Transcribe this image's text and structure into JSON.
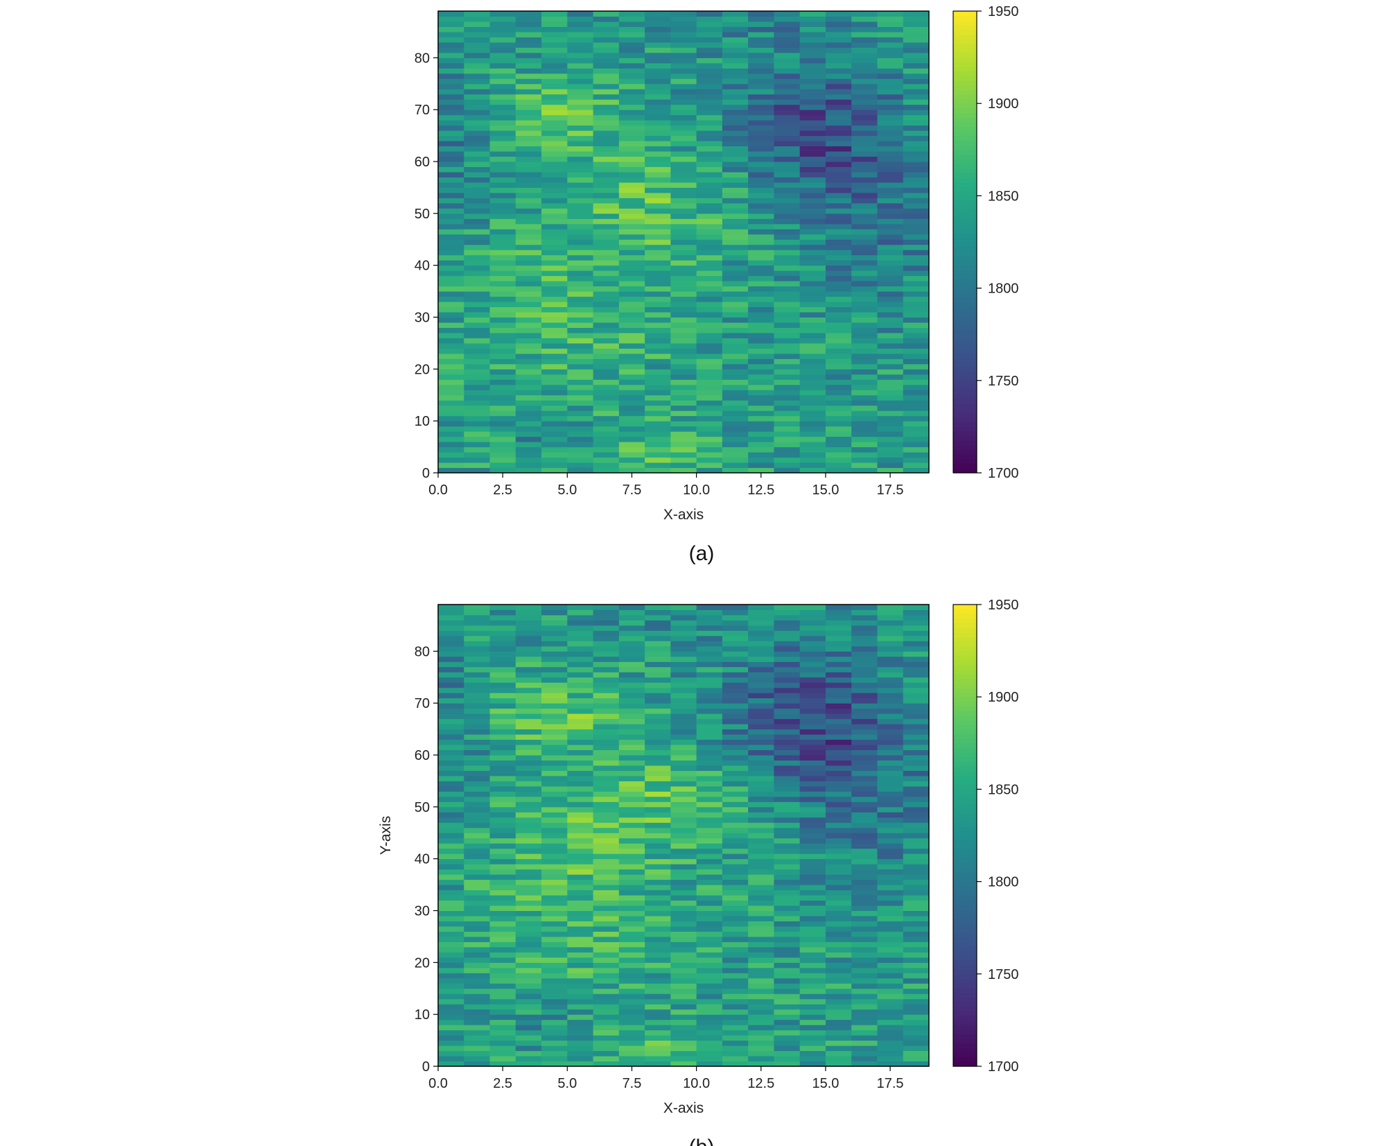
{
  "chart_data": [
    {
      "type": "heatmap",
      "caption": "(a)",
      "xlabel": "X-axis",
      "ylabel": "",
      "xlim": [
        0,
        19
      ],
      "ylim": [
        0,
        89
      ],
      "x_ticks": [
        "0.0",
        "2.5",
        "5.0",
        "7.5",
        "10.0",
        "12.5",
        "15.0",
        "17.5"
      ],
      "y_ticks": [
        "0",
        "10",
        "20",
        "30",
        "40",
        "50",
        "60",
        "70",
        "80"
      ],
      "colormap": "viridis",
      "clim": [
        1700,
        1950
      ],
      "colorbar_ticks": [
        "1700",
        "1750",
        "1800",
        "1850",
        "1900",
        "1950"
      ],
      "grid": false
    },
    {
      "type": "heatmap",
      "caption": "(b)",
      "xlabel": "X-axis",
      "ylabel": "Y-axis",
      "xlim": [
        0,
        19
      ],
      "ylim": [
        0,
        89
      ],
      "x_ticks": [
        "0.0",
        "2.5",
        "5.0",
        "7.5",
        "10.0",
        "12.5",
        "15.0",
        "17.5"
      ],
      "y_ticks": [
        "0",
        "10",
        "20",
        "30",
        "40",
        "50",
        "60",
        "70",
        "80"
      ],
      "colormap": "viridis",
      "clim": [
        1700,
        1950
      ],
      "colorbar_ticks": [
        "1700",
        "1750",
        "1800",
        "1850",
        "1900",
        "1950"
      ],
      "grid": false
    }
  ]
}
